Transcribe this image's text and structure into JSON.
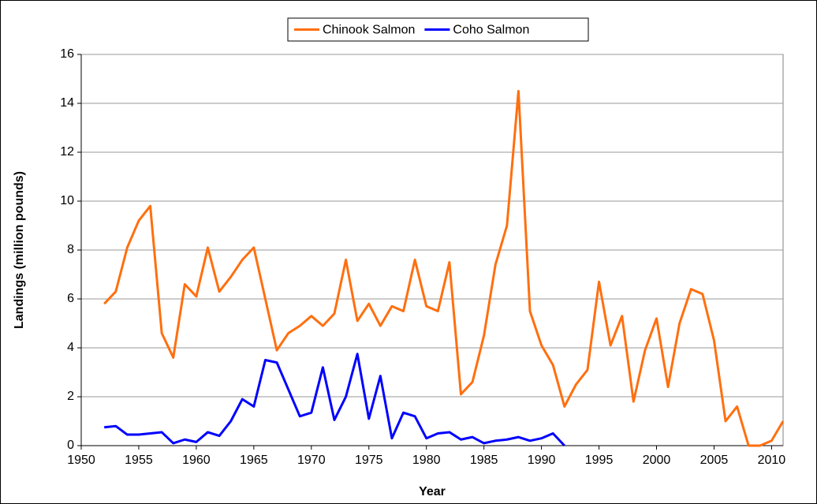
{
  "chart_data": {
    "type": "line",
    "x_label": "Year",
    "y_label": "Landings (million pounds)",
    "x": [
      1952,
      1953,
      1954,
      1955,
      1956,
      1957,
      1958,
      1959,
      1960,
      1961,
      1962,
      1963,
      1964,
      1965,
      1966,
      1967,
      1968,
      1969,
      1970,
      1971,
      1972,
      1973,
      1974,
      1975,
      1976,
      1977,
      1978,
      1979,
      1980,
      1981,
      1982,
      1983,
      1984,
      1985,
      1986,
      1987,
      1988,
      1989,
      1990,
      1991,
      1992,
      1993,
      1994,
      1995,
      1996,
      1997,
      1998,
      1999,
      2000,
      2001,
      2002,
      2003,
      2004,
      2005,
      2006,
      2007,
      2008,
      2009,
      2010,
      2011
    ],
    "series": [
      {
        "name": "Chinook Salmon",
        "color": "#ff6f0f",
        "values": [
          5.8,
          6.3,
          8.1,
          9.2,
          9.8,
          4.6,
          3.6,
          6.6,
          6.1,
          8.1,
          6.3,
          6.9,
          7.6,
          8.1,
          6.0,
          3.9,
          4.6,
          4.9,
          5.3,
          4.9,
          5.4,
          7.6,
          5.1,
          5.8,
          4.9,
          5.7,
          5.5,
          7.6,
          5.7,
          5.5,
          7.5,
          2.1,
          2.6,
          4.5,
          7.4,
          9.0,
          14.5,
          5.5,
          4.1,
          3.3,
          1.6,
          2.5,
          3.1,
          6.7,
          4.1,
          5.3,
          1.8,
          3.9,
          5.2,
          2.4,
          5.0,
          6.4,
          6.2,
          4.3,
          1.0,
          1.6,
          0.0,
          0.0,
          0.2,
          1.0
        ]
      },
      {
        "name": "Coho Salmon",
        "color": "#0000ff",
        "values": [
          0.75,
          0.8,
          0.45,
          0.45,
          0.5,
          0.55,
          0.1,
          0.25,
          0.15,
          0.55,
          0.4,
          1.0,
          1.9,
          1.6,
          3.5,
          3.4,
          2.3,
          1.2,
          1.35,
          3.2,
          1.05,
          2.0,
          3.75,
          1.1,
          2.85,
          0.3,
          1.35,
          1.2,
          0.3,
          0.5,
          0.55,
          0.25,
          0.35,
          0.1,
          0.2,
          0.25,
          0.35,
          0.2,
          0.3,
          0.5,
          0.0,
          null,
          null,
          null,
          null,
          null,
          null,
          null,
          null,
          null,
          null,
          null,
          null,
          null,
          null,
          null,
          null,
          null,
          null,
          null
        ]
      }
    ],
    "xlim": [
      1950,
      2011
    ],
    "xticks": [
      1950,
      1955,
      1960,
      1965,
      1970,
      1975,
      1980,
      1985,
      1990,
      1995,
      2000,
      2005,
      2010
    ],
    "ylim": [
      0,
      16
    ],
    "yticks": [
      0,
      2,
      4,
      6,
      8,
      10,
      12,
      14,
      16
    ],
    "grid": true,
    "legend": "top"
  }
}
